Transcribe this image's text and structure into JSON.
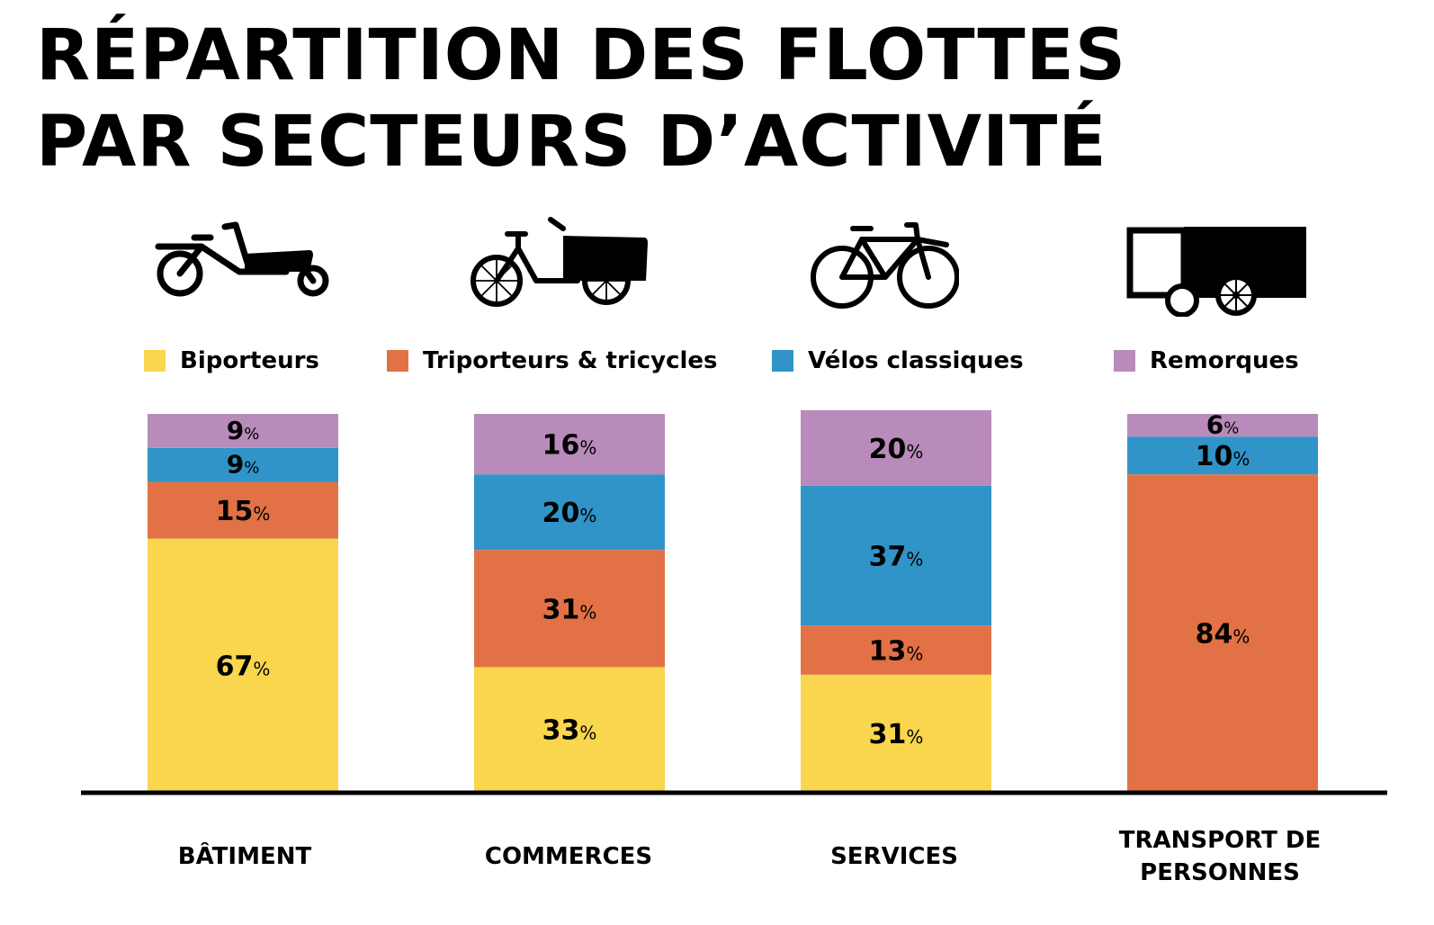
{
  "title": {
    "line1": "RÉPARTITION DES FLOTTES",
    "line2": "PAR SECTEURS D’ACTIVITÉ"
  },
  "icons": [
    "bike-cargo-icon",
    "tricycle-cargo-icon",
    "bicycle-icon",
    "trailer-icon"
  ],
  "colors": {
    "biporteurs": "#f9d64e",
    "triporteurs": "#e27245",
    "velos": "#3094c8",
    "remorques": "#b88bba",
    "axis": "#000000"
  },
  "chart_data": {
    "type": "bar",
    "stacked": true,
    "title": "RÉPARTITION DES FLOTTES PAR SECTEURS D’ACTIVITÉ",
    "categories": [
      "BÂTIMENT",
      "COMMERCES",
      "SERVICES",
      "TRANSPORT DE PERSONNES"
    ],
    "categories_display": [
      [
        "BÂTIMENT"
      ],
      [
        "COMMERCES"
      ],
      [
        "SERVICES"
      ],
      [
        "TRANSPORT DE",
        "PERSONNES"
      ]
    ],
    "unit": "%",
    "ylim": [
      0,
      100
    ],
    "legend_position": "top",
    "series": [
      {
        "name": "Biporteurs",
        "color": "#f9d64e",
        "values": [
          67,
          33,
          31,
          0
        ]
      },
      {
        "name": "Triporteurs & tricycles",
        "color": "#e27245",
        "values": [
          15,
          31,
          13,
          84
        ]
      },
      {
        "name": "Vélos classiques",
        "color": "#3094c8",
        "values": [
          9,
          20,
          37,
          10
        ]
      },
      {
        "name": "Remorques",
        "color": "#b88bba",
        "values": [
          9,
          16,
          20,
          6
        ]
      }
    ]
  }
}
